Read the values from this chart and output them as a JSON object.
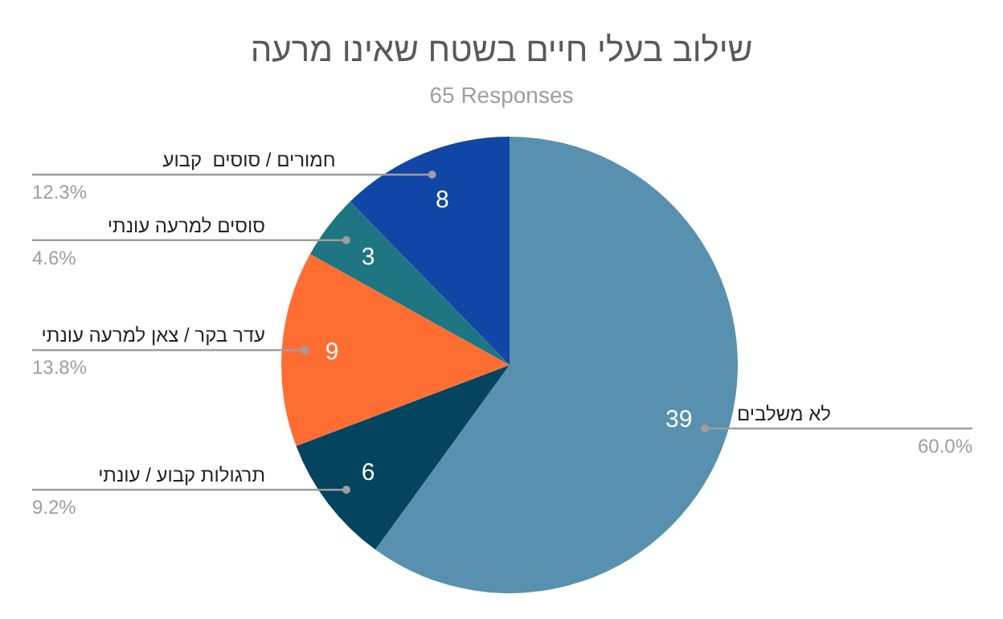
{
  "chart_data": {
    "type": "pie",
    "title": "שילוב בעלי חיים בשטח שאינו מרעה",
    "subtitle": "65 Responses",
    "categories": [
      "לא משלבים",
      "תרגולות קבוע / עונתי",
      "עדר בקר / צאן למרעה עונתי",
      "סוסים למרעה עונתי",
      "חמורים / סוסים  קבוע"
    ],
    "values": [
      39,
      6,
      9,
      3,
      8
    ],
    "colors": [
      "#5891b0",
      "#05445f",
      "#ff6d33",
      "#1f7581",
      "#1246a6"
    ],
    "annotations": [
      {
        "text": "60.0%",
        "x": "לא משלבים"
      },
      {
        "text": "9.2%",
        "x": "תרגולות קבוע / עונתי"
      },
      {
        "text": "13.8%",
        "x": "עדר בקר / צאן למרעה עונתי"
      },
      {
        "text": "4.6%",
        "x": "סוסים למרעה עונתי"
      },
      {
        "text": "12.3%",
        "x": "חמורים / סוסים  קבוע"
      }
    ],
    "data_labels": true,
    "legend": false
  }
}
